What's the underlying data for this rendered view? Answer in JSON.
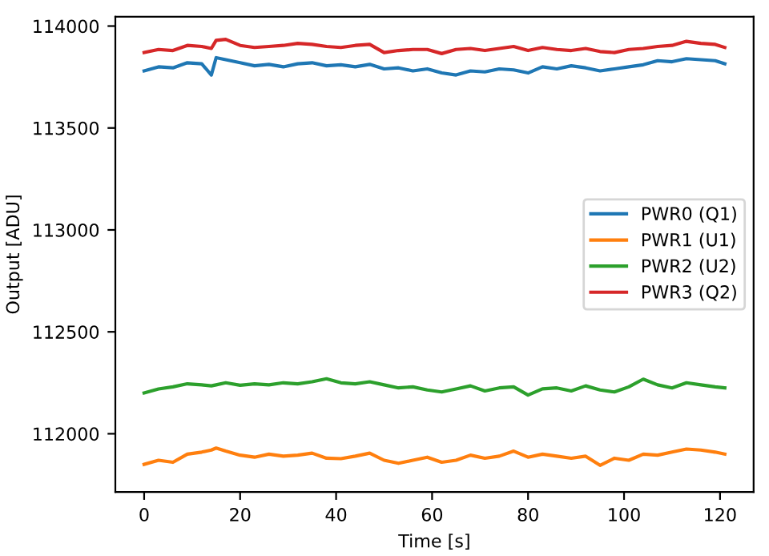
{
  "chart_data": {
    "type": "line",
    "xlabel": "Time [s]",
    "ylabel": "Output [ADU]",
    "x": [
      0,
      3,
      6,
      9,
      12,
      14,
      15,
      17,
      20,
      23,
      26,
      29,
      32,
      35,
      38,
      41,
      44,
      47,
      50,
      53,
      56,
      59,
      62,
      65,
      68,
      71,
      74,
      77,
      80,
      83,
      86,
      89,
      92,
      95,
      98,
      101,
      104,
      107,
      110,
      113,
      116,
      119,
      121
    ],
    "series": [
      {
        "name": "PWR0 (Q1)",
        "color": "#1f77b4",
        "values": [
          113780,
          113800,
          113795,
          113820,
          113815,
          113760,
          113845,
          113835,
          113820,
          113805,
          113812,
          113800,
          113815,
          113820,
          113805,
          113810,
          113800,
          113812,
          113790,
          113795,
          113780,
          113790,
          113770,
          113760,
          113780,
          113775,
          113790,
          113785,
          113770,
          113800,
          113790,
          113805,
          113795,
          113780,
          113790,
          113800,
          113810,
          113830,
          113825,
          113840,
          113835,
          113830,
          113815
        ]
      },
      {
        "name": "PWR1 (U1)",
        "color": "#ff7f0e",
        "values": [
          111850,
          111870,
          111860,
          111900,
          111910,
          111920,
          111930,
          111915,
          111895,
          111885,
          111900,
          111890,
          111895,
          111905,
          111880,
          111878,
          111890,
          111905,
          111870,
          111855,
          111870,
          111885,
          111860,
          111870,
          111895,
          111880,
          111890,
          111915,
          111885,
          111900,
          111890,
          111880,
          111890,
          111845,
          111880,
          111870,
          111900,
          111895,
          111910,
          111925,
          111920,
          111910,
          111900
        ]
      },
      {
        "name": "PWR2 (U2)",
        "color": "#2ca02c",
        "values": [
          112200,
          112220,
          112230,
          112245,
          112240,
          112235,
          112240,
          112250,
          112238,
          112245,
          112240,
          112250,
          112245,
          112255,
          112270,
          112250,
          112245,
          112255,
          112240,
          112225,
          112230,
          112215,
          112205,
          112220,
          112235,
          112210,
          112225,
          112230,
          112190,
          112220,
          112225,
          112210,
          112235,
          112215,
          112205,
          112230,
          112268,
          112240,
          112225,
          112250,
          112240,
          112230,
          112225
        ]
      },
      {
        "name": "PWR3 (Q2)",
        "color": "#d62728",
        "values": [
          113870,
          113885,
          113880,
          113905,
          113900,
          113890,
          113930,
          113935,
          113905,
          113895,
          113900,
          113905,
          113915,
          113910,
          113900,
          113895,
          113905,
          113910,
          113870,
          113880,
          113885,
          113885,
          113865,
          113885,
          113890,
          113880,
          113890,
          113900,
          113880,
          113895,
          113885,
          113880,
          113890,
          113875,
          113870,
          113885,
          113890,
          113900,
          113905,
          113925,
          113915,
          113910,
          113895
        ]
      }
    ],
    "xlim": [
      -6,
      127
    ],
    "ylim": [
      111714,
      114046
    ],
    "xticks": [
      0,
      20,
      40,
      60,
      80,
      100,
      120
    ],
    "yticks": [
      112000,
      112500,
      113000,
      113500,
      114000
    ],
    "legend": "right",
    "grid": false,
    "line_style": "solid",
    "marker": "none"
  }
}
